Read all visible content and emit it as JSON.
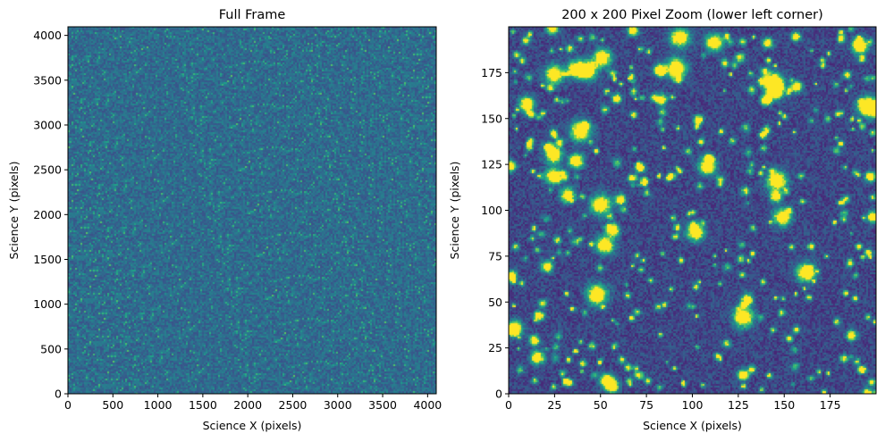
{
  "chart_data": [
    {
      "type": "heatmap",
      "title": "Full Frame",
      "xlabel": "Science X (pixels)",
      "ylabel": "Science Y (pixels)",
      "xlim": [
        0,
        4096
      ],
      "ylim": [
        0,
        4096
      ],
      "xticks": [
        0,
        500,
        1000,
        1500,
        2000,
        2500,
        3000,
        3500,
        4000
      ],
      "yticks": [
        0,
        500,
        1000,
        1500,
        2000,
        2500,
        3000,
        3500,
        4000
      ],
      "colormap": "viridis",
      "appearance": "uniform fine-grained noise, dark blue-teal with scattered green speckles"
    },
    {
      "type": "heatmap",
      "title": "200 x 200 Pixel Zoom (lower left corner)",
      "xlabel": "Science X (pixels)",
      "ylabel": "Science Y (pixels)",
      "xlim": [
        0,
        200
      ],
      "ylim": [
        0,
        200
      ],
      "xticks": [
        0,
        25,
        50,
        75,
        100,
        125,
        150,
        175
      ],
      "yticks": [
        0,
        25,
        50,
        75,
        100,
        125,
        150,
        175
      ],
      "colormap": "viridis",
      "appearance": "dark purple background with teal noise and many bright yellow star sources"
    }
  ],
  "colors": {
    "viridis_dark": "#440154",
    "viridis_blue": "#3b528b",
    "viridis_teal": "#21918c",
    "viridis_green": "#5ec962",
    "viridis_yellow": "#fde725"
  }
}
